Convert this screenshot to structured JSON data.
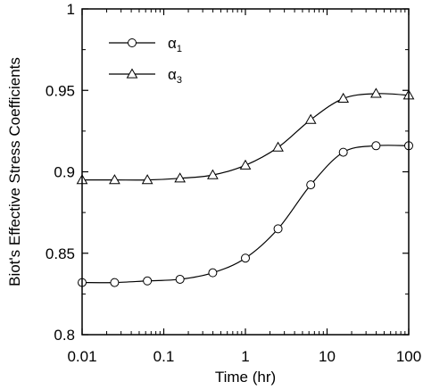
{
  "chart_data": {
    "type": "line",
    "xlabel": "Time (hr)",
    "ylabel": "Biot's Effective Stress Coefficients",
    "xscale": "log",
    "xlim": [
      0.01,
      100
    ],
    "ylim": [
      0.8,
      1.0
    ],
    "x_ticks": [
      "0.01",
      "0.1",
      "1",
      "10",
      "100"
    ],
    "y_ticks": [
      "0.8",
      "0.85",
      "0.9",
      "0.95",
      "1"
    ],
    "grid": false,
    "legend_position": "top-left",
    "series": [
      {
        "name": "α",
        "subscript": "1",
        "marker": "circle",
        "x": [
          0.01,
          0.025,
          0.063,
          0.158,
          0.398,
          1.0,
          2.51,
          6.31,
          15.8,
          39.8,
          100
        ],
        "y": [
          0.832,
          0.832,
          0.833,
          0.834,
          0.838,
          0.847,
          0.865,
          0.892,
          0.912,
          0.916,
          0.916
        ]
      },
      {
        "name": "α",
        "subscript": "3",
        "marker": "triangle",
        "x": [
          0.01,
          0.025,
          0.063,
          0.158,
          0.398,
          1.0,
          2.51,
          6.31,
          15.8,
          39.8,
          100
        ],
        "y": [
          0.895,
          0.895,
          0.895,
          0.896,
          0.898,
          0.904,
          0.915,
          0.932,
          0.945,
          0.948,
          0.947
        ]
      }
    ],
    "line_color": "#000000"
  }
}
